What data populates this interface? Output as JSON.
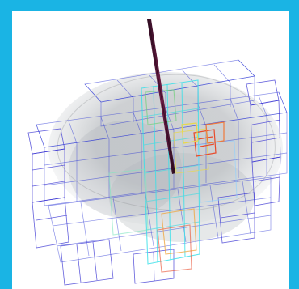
{
  "scene": {
    "description_visible_text": "",
    "colors": {
      "frame_border": "#1ab4e4",
      "viewport_background": "#ffffff",
      "grid_primary": "#2a34d6",
      "grid_secondary": "#66b3ff",
      "cyan_mesh": "#35e0e8",
      "gray_volume": "#9ea3a8",
      "probe_shaft": "#4a1230",
      "target_sphere": "#1f8f2a",
      "heat_red": "#e84a2a",
      "heat_yellow": "#e8d84a"
    },
    "icons": {
      "probe": "needle-probe-icon",
      "target": "target-sphere-icon"
    }
  }
}
